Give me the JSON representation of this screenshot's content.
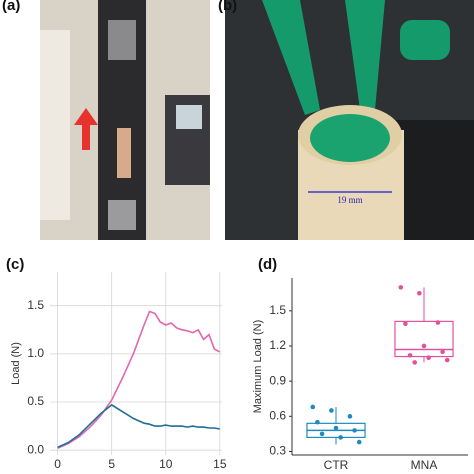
{
  "panels": [
    "(a)",
    "(b)",
    "(c)",
    "(d)"
  ],
  "photo_annotation": "19 mm",
  "chart_data": [
    {
      "type": "line",
      "y_label": "Load (N)",
      "x": [
        0,
        1,
        2,
        3,
        4,
        5,
        6,
        7,
        8,
        8.5,
        9,
        9.5,
        10,
        10.5,
        11,
        11.5,
        12,
        12.5,
        13,
        13.5,
        14,
        14.5,
        15
      ],
      "series": [
        {
          "color": "#e466ae",
          "values": [
            0.02,
            0.07,
            0.14,
            0.24,
            0.36,
            0.52,
            0.75,
            1.0,
            1.3,
            1.44,
            1.42,
            1.33,
            1.3,
            1.32,
            1.27,
            1.25,
            1.24,
            1.22,
            1.25,
            1.15,
            1.2,
            1.05,
            1.02
          ]
        },
        {
          "color": "#1f6f96",
          "values": [
            0.03,
            0.08,
            0.16,
            0.27,
            0.38,
            0.47,
            0.4,
            0.33,
            0.28,
            0.27,
            0.25,
            0.25,
            0.26,
            0.25,
            0.25,
            0.25,
            0.24,
            0.25,
            0.24,
            0.24,
            0.23,
            0.23,
            0.22
          ]
        }
      ],
      "xlim": [
        -0.7,
        15.2
      ],
      "xticks": [
        0,
        5,
        10,
        15
      ],
      "ylim": [
        -0.05,
        1.85
      ],
      "yticks": [
        {
          "value": 0,
          "label": "0.0"
        },
        0.5,
        {
          "value": 1,
          "label": "1.0"
        },
        1.5
      ],
      "grid": true
    },
    {
      "type": "box",
      "y_label": "Maximum Load (N)",
      "categories": [
        "CTR",
        "MNA"
      ],
      "series": [
        {
          "color": "#1f8ac0",
          "min": 0.36,
          "q1": 0.42,
          "median": 0.48,
          "q3": 0.54,
          "max": 0.68,
          "points": [
            0.68,
            0.65,
            0.6,
            0.55,
            0.5,
            0.48,
            0.45,
            0.42,
            0.38
          ]
        },
        {
          "color": "#e0529c",
          "min": 1.06,
          "q1": 1.11,
          "median": 1.17,
          "q3": 1.41,
          "max": 1.7,
          "points": [
            1.7,
            1.65,
            1.4,
            1.39,
            1.2,
            1.15,
            1.12,
            1.1,
            1.08,
            1.06
          ]
        }
      ],
      "ylim": [
        0.27,
        1.78
      ],
      "yticks": [
        0.3,
        0.6,
        0.9,
        1.2,
        1.5
      ],
      "grid": false
    }
  ]
}
